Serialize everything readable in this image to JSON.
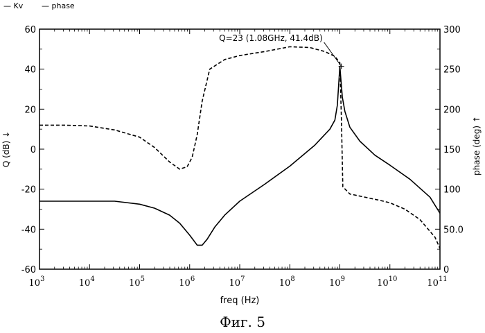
{
  "caption": "Фиг. 5",
  "chart_data": {
    "type": "line",
    "title": "",
    "xlabel": "freq (Hz)",
    "ylabel": "Q (dB) ↓",
    "y2label": "phase (deg) ↑",
    "xscale": "log",
    "x_exponent_range": [
      3,
      11
    ],
    "ylim": [
      -60,
      60
    ],
    "y2lim": [
      0,
      300
    ],
    "x_ticks": [
      {
        "base": "10",
        "exp": "3"
      },
      {
        "base": "10",
        "exp": "4"
      },
      {
        "base": "10",
        "exp": "5"
      },
      {
        "base": "10",
        "exp": "6"
      },
      {
        "base": "10",
        "exp": "7"
      },
      {
        "base": "10",
        "exp": "8"
      },
      {
        "base": "10",
        "exp": "9"
      },
      {
        "base": "10",
        "exp": "10"
      },
      {
        "base": "10",
        "exp": "11"
      }
    ],
    "y_ticks": [
      -60,
      -40,
      -20,
      0,
      20,
      40,
      60
    ],
    "y_tick_labels": [
      "-60",
      "-40",
      "-20",
      "0",
      "20",
      "40",
      "60"
    ],
    "y2_ticks": [
      0,
      50,
      100,
      150,
      200,
      250,
      300
    ],
    "y2_tick_labels": [
      "0",
      "50.0",
      "100",
      "150",
      "200",
      "250",
      "300"
    ],
    "legend": [
      {
        "name": "Kv",
        "label": "— Kv",
        "style": "solid"
      },
      {
        "name": "phase",
        "label": "— phase",
        "style": "dashed"
      }
    ],
    "annotation": {
      "text": "Q=23 (1.08GHz, 41.4dB)",
      "x_log10": 9.03,
      "y": 41.4
    },
    "series": [
      {
        "name": "Kv",
        "axis": "left",
        "style": "solid",
        "x_log10": [
          3,
          3.5,
          4,
          4.5,
          5,
          5.3,
          5.6,
          5.8,
          6.0,
          6.15,
          6.25,
          6.35,
          6.5,
          6.7,
          7,
          7.5,
          8,
          8.5,
          8.8,
          8.9,
          8.95,
          9.0,
          9.05,
          9.1,
          9.2,
          9.4,
          9.7,
          10,
          10.4,
          10.8,
          11
        ],
        "y": [
          -26,
          -26,
          -26,
          -26,
          -27.5,
          -29.5,
          -33,
          -37,
          -43,
          -48,
          -48,
          -45,
          -39,
          -33,
          -26,
          -17.5,
          -8.5,
          2,
          10,
          14.5,
          22,
          41.4,
          26,
          19,
          11,
          4,
          -3,
          -8,
          -15,
          -24,
          -32
        ]
      },
      {
        "name": "phase",
        "axis": "right",
        "style": "dashed",
        "x_log10": [
          3,
          3.5,
          4,
          4.5,
          5,
          5.3,
          5.6,
          5.8,
          5.95,
          6.05,
          6.15,
          6.25,
          6.4,
          6.7,
          7,
          7.5,
          8,
          8.4,
          8.7,
          8.9,
          9.0,
          9.03,
          9.06,
          9.2,
          9.5,
          9.8,
          10,
          10.3,
          10.6,
          10.9,
          11
        ],
        "y": [
          180,
          180,
          179,
          174,
          165,
          152,
          134,
          125,
          128,
          140,
          168,
          210,
          250,
          262,
          267,
          272,
          278,
          277,
          272,
          266,
          258,
          190,
          103,
          94,
          90,
          86,
          83,
          75,
          62,
          40,
          26
        ]
      }
    ]
  }
}
